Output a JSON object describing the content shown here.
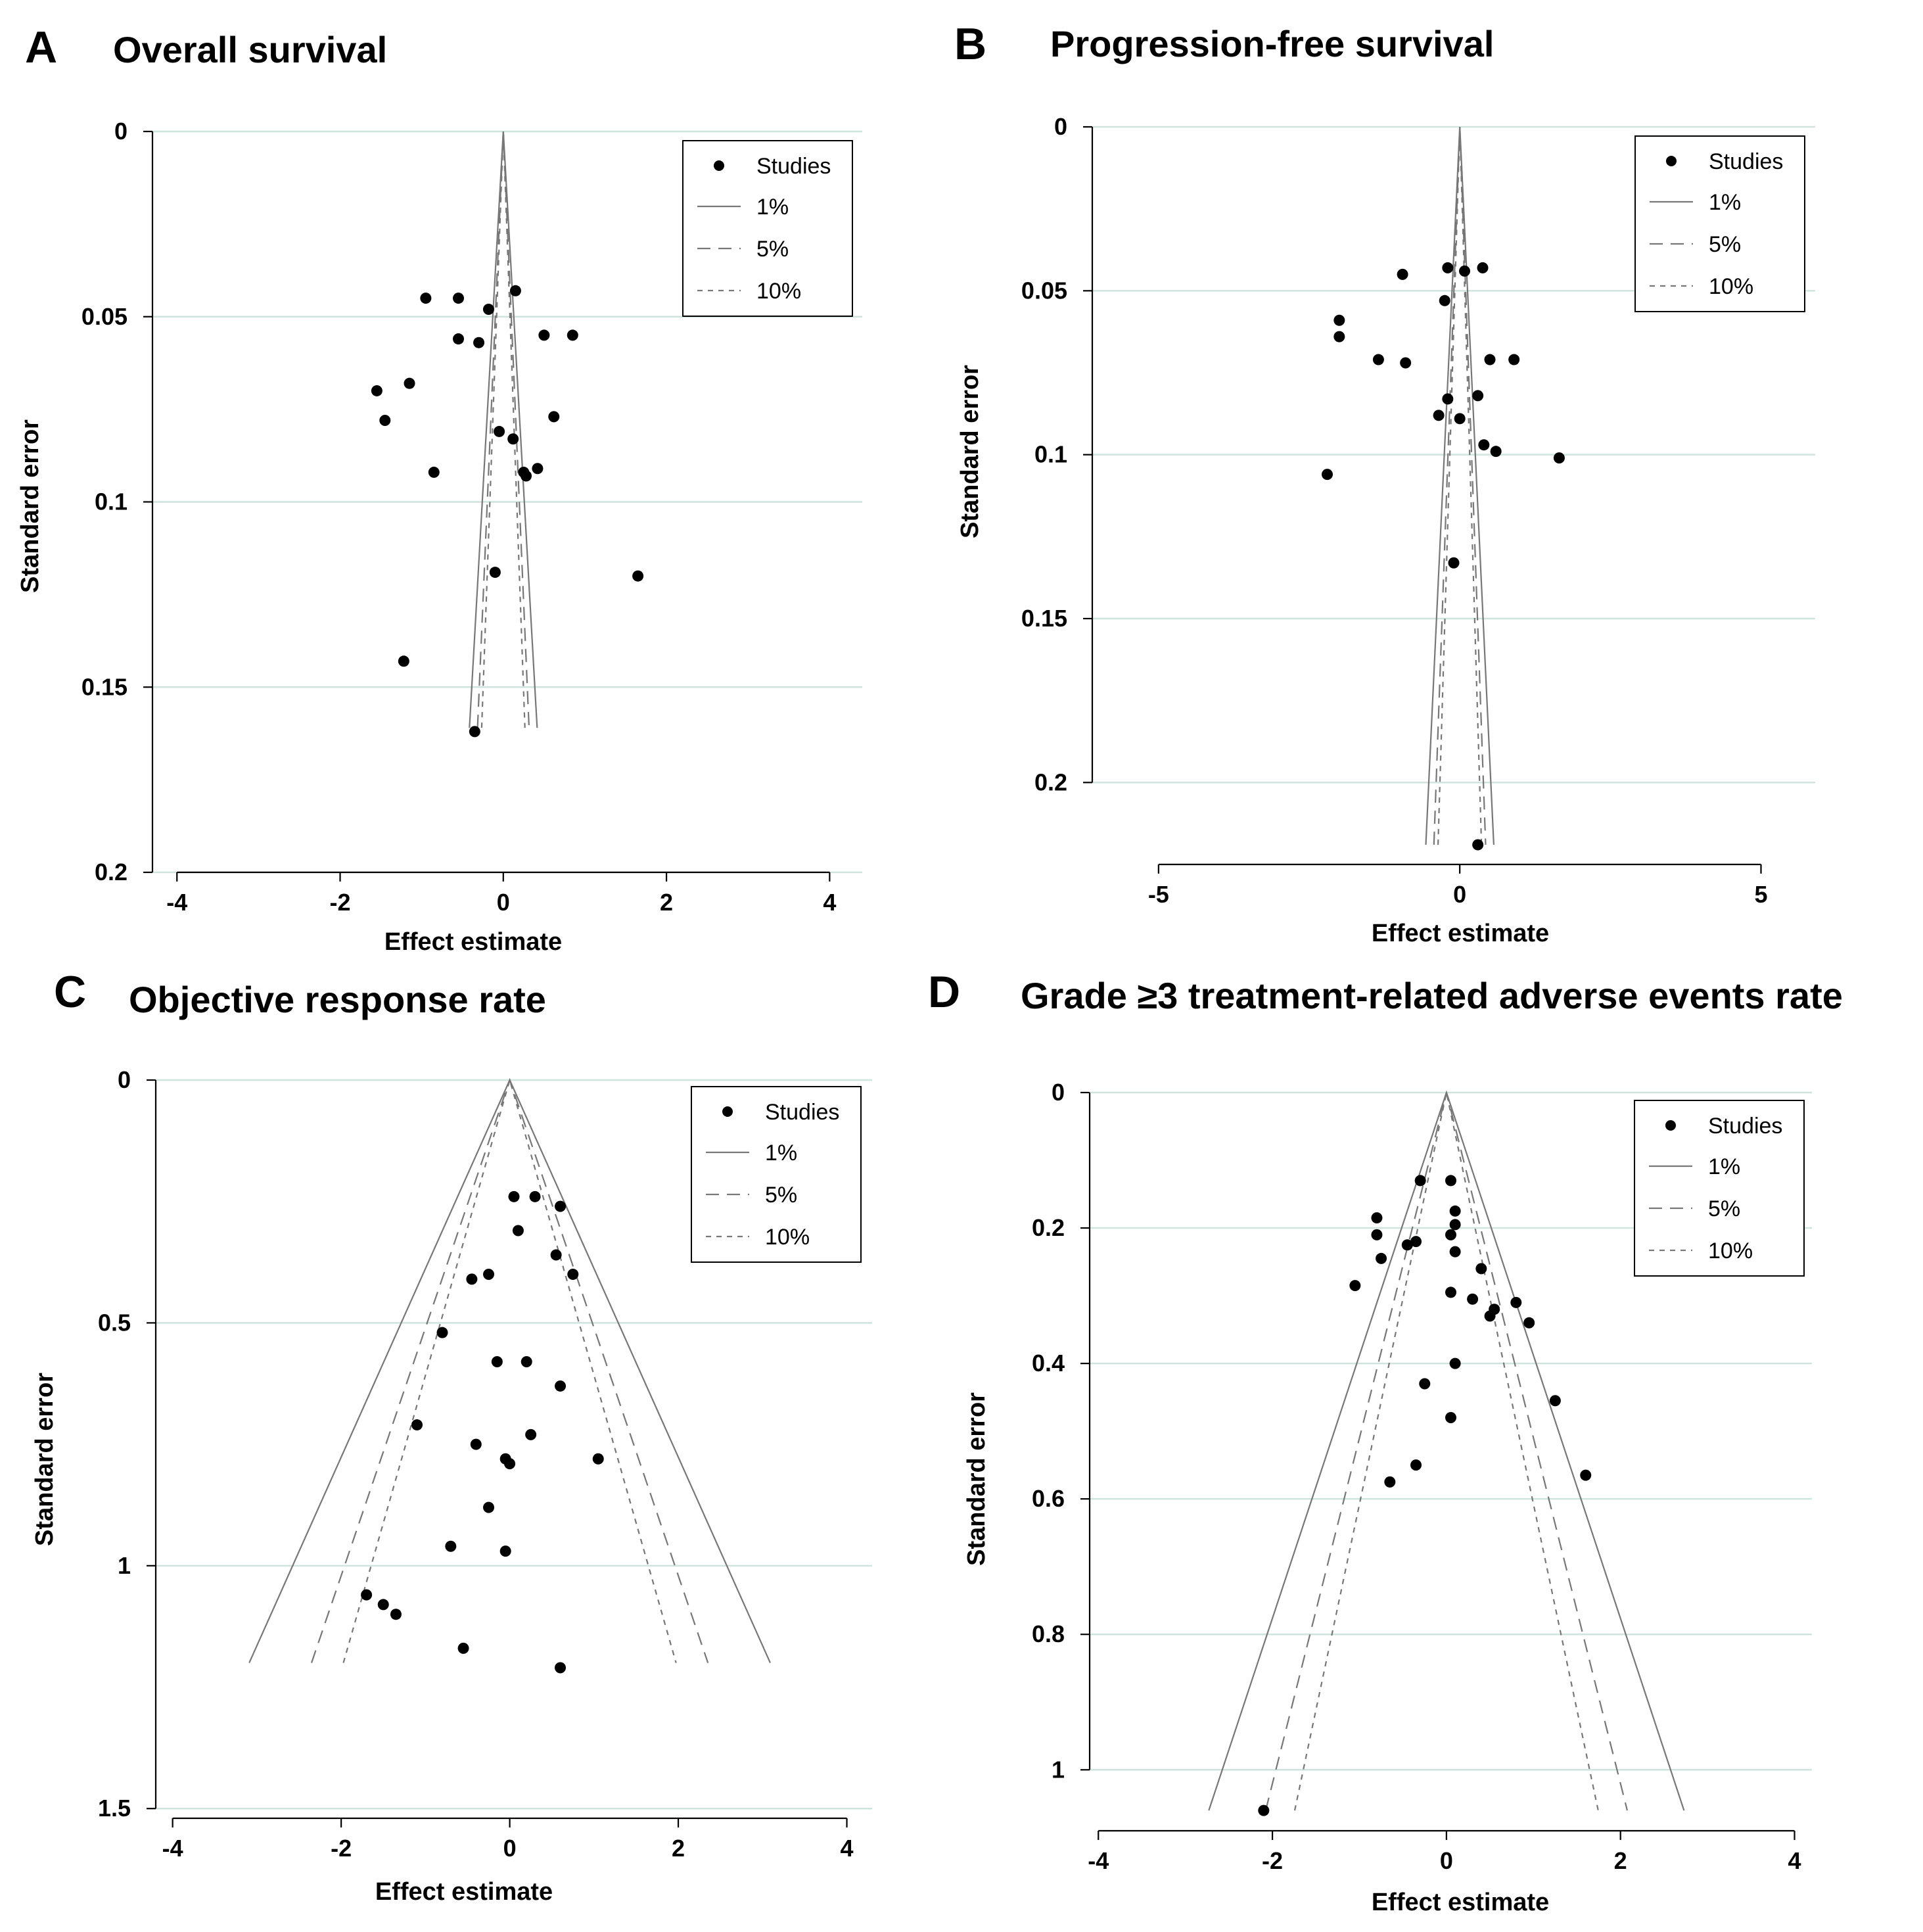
{
  "chart_data": [
    {
      "type": "scatter",
      "panel": "A",
      "title": "Overall survival",
      "xlabel": "Effect estimate",
      "ylabel": "Standard error",
      "xlim": [
        -4.3,
        4.4
      ],
      "ylim": [
        0.2,
        0
      ],
      "xticks": [
        -4,
        -2,
        0,
        2,
        4
      ],
      "yticks": [
        0,
        0.05,
        0.1,
        0.15,
        0.2
      ],
      "grid": "horizontal",
      "legend": {
        "position": "top-right",
        "entries": [
          "Studies",
          "1%",
          "5%",
          "10%"
        ]
      },
      "funnel": {
        "apex": 0,
        "se_max": 0.161,
        "z": {
          "1%": 2.576,
          "5%": 1.96,
          "10%": 1.645
        }
      },
      "series": [
        {
          "name": "Studies",
          "points": [
            [
              -0.95,
              0.045
            ],
            [
              -0.55,
              0.045
            ],
            [
              0.15,
              0.043
            ],
            [
              -0.18,
              0.048
            ],
            [
              -0.55,
              0.056
            ],
            [
              -0.3,
              0.057
            ],
            [
              0.5,
              0.055
            ],
            [
              0.85,
              0.055
            ],
            [
              -1.55,
              0.07
            ],
            [
              -1.15,
              0.068
            ],
            [
              -1.45,
              0.078
            ],
            [
              0.62,
              0.077
            ],
            [
              -0.05,
              0.081
            ],
            [
              0.12,
              0.083
            ],
            [
              -0.85,
              0.092
            ],
            [
              0.25,
              0.092
            ],
            [
              0.42,
              0.091
            ],
            [
              0.28,
              0.093
            ],
            [
              -0.1,
              0.119
            ],
            [
              1.65,
              0.12
            ],
            [
              -1.22,
              0.143
            ],
            [
              -0.35,
              0.162
            ]
          ]
        }
      ]
    },
    {
      "type": "scatter",
      "panel": "B",
      "title": "Progression-free survival",
      "xlabel": "Effect estimate",
      "ylabel": "Standard error",
      "xlim": [
        -6.1,
        5.9
      ],
      "ylim": [
        0.225,
        0
      ],
      "xticks": [
        -5,
        0,
        5
      ],
      "yticks": [
        0,
        0.05,
        0.1,
        0.15,
        0.2
      ],
      "grid": "horizontal",
      "legend": {
        "position": "top-right",
        "entries": [
          "Studies",
          "1%",
          "5%",
          "10%"
        ]
      },
      "funnel": {
        "apex": 0,
        "se_max": 0.219,
        "z": {
          "1%": 2.576,
          "5%": 1.96,
          "10%": 1.645
        }
      },
      "series": [
        {
          "name": "Studies",
          "points": [
            [
              -0.2,
              0.043
            ],
            [
              0.08,
              0.044
            ],
            [
              0.38,
              0.043
            ],
            [
              -0.95,
              0.045
            ],
            [
              -0.25,
              0.053
            ],
            [
              -2.0,
              0.059
            ],
            [
              -2.0,
              0.064
            ],
            [
              -1.35,
              0.071
            ],
            [
              -0.9,
              0.072
            ],
            [
              0.5,
              0.071
            ],
            [
              0.9,
              0.071
            ],
            [
              -0.2,
              0.083
            ],
            [
              0.3,
              0.082
            ],
            [
              -0.35,
              0.088
            ],
            [
              0.0,
              0.089
            ],
            [
              0.4,
              0.097
            ],
            [
              0.6,
              0.099
            ],
            [
              1.65,
              0.101
            ],
            [
              -2.2,
              0.106
            ],
            [
              -0.1,
              0.133
            ],
            [
              0.3,
              0.219
            ]
          ]
        }
      ]
    },
    {
      "type": "scatter",
      "panel": "C",
      "title": "Objective response rate",
      "xlabel": "Effect estimate",
      "ylabel": "Standard error",
      "xlim": [
        -4.2,
        4.3
      ],
      "ylim": [
        1.52,
        0
      ],
      "xticks": [
        -4,
        -2,
        0,
        2,
        4
      ],
      "yticks": [
        0,
        0.5,
        1,
        1.5
      ],
      "grid": "horizontal",
      "legend": {
        "position": "top-right",
        "entries": [
          "Studies",
          "1%",
          "5%",
          "10%"
        ]
      },
      "funnel": {
        "apex": 0,
        "se_max": 1.2,
        "z": {
          "1%": 2.576,
          "5%": 1.96,
          "10%": 1.645
        }
      },
      "series": [
        {
          "name": "Studies",
          "points": [
            [
              0.05,
              0.24
            ],
            [
              0.3,
              0.24
            ],
            [
              0.6,
              0.26
            ],
            [
              0.1,
              0.31
            ],
            [
              0.55,
              0.36
            ],
            [
              -0.45,
              0.41
            ],
            [
              -0.25,
              0.4
            ],
            [
              0.75,
              0.4
            ],
            [
              -0.8,
              0.52
            ],
            [
              -0.15,
              0.58
            ],
            [
              0.2,
              0.58
            ],
            [
              0.6,
              0.63
            ],
            [
              -1.1,
              0.71
            ],
            [
              -0.4,
              0.75
            ],
            [
              0.25,
              0.73
            ],
            [
              -0.05,
              0.78
            ],
            [
              0.0,
              0.79
            ],
            [
              1.05,
              0.78
            ],
            [
              -0.25,
              0.88
            ],
            [
              -0.7,
              0.96
            ],
            [
              -0.05,
              0.97
            ],
            [
              -1.7,
              1.06
            ],
            [
              -1.5,
              1.08
            ],
            [
              -1.35,
              1.1
            ],
            [
              -0.55,
              1.17
            ],
            [
              0.6,
              1.21
            ]
          ]
        }
      ]
    },
    {
      "type": "scatter",
      "panel": "D",
      "title": "Grade ≥3 treatment-related adverse events rate",
      "xlabel": "Effect estimate",
      "ylabel": "Standard error",
      "xlim": [
        -4.1,
        4.2
      ],
      "ylim": [
        1.09,
        0
      ],
      "xticks": [
        -4,
        -2,
        0,
        2,
        4
      ],
      "yticks": [
        0,
        0.2,
        0.4,
        0.6,
        0.8,
        1
      ],
      "grid": "horizontal",
      "legend": {
        "position": "top-right",
        "entries": [
          "Studies",
          "1%",
          "5%",
          "10%"
        ]
      },
      "funnel": {
        "apex": 0,
        "se_max": 1.06,
        "z": {
          "1%": 2.576,
          "5%": 1.96,
          "10%": 1.645
        }
      },
      "series": [
        {
          "name": "Studies",
          "points": [
            [
              -0.3,
              0.13
            ],
            [
              0.05,
              0.13
            ],
            [
              0.1,
              0.175
            ],
            [
              -0.8,
              0.185
            ],
            [
              0.1,
              0.195
            ],
            [
              0.05,
              0.21
            ],
            [
              -0.8,
              0.21
            ],
            [
              -0.35,
              0.22
            ],
            [
              -0.45,
              0.225
            ],
            [
              0.1,
              0.235
            ],
            [
              -0.75,
              0.245
            ],
            [
              0.4,
              0.26
            ],
            [
              -1.05,
              0.285
            ],
            [
              0.05,
              0.295
            ],
            [
              0.3,
              0.305
            ],
            [
              0.8,
              0.31
            ],
            [
              0.55,
              0.32
            ],
            [
              0.5,
              0.33
            ],
            [
              0.95,
              0.34
            ],
            [
              0.1,
              0.4
            ],
            [
              -0.25,
              0.43
            ],
            [
              1.25,
              0.455
            ],
            [
              0.05,
              0.48
            ],
            [
              -0.35,
              0.55
            ],
            [
              1.6,
              0.565
            ],
            [
              -0.65,
              0.575
            ],
            [
              -2.1,
              1.06
            ]
          ]
        }
      ]
    }
  ]
}
